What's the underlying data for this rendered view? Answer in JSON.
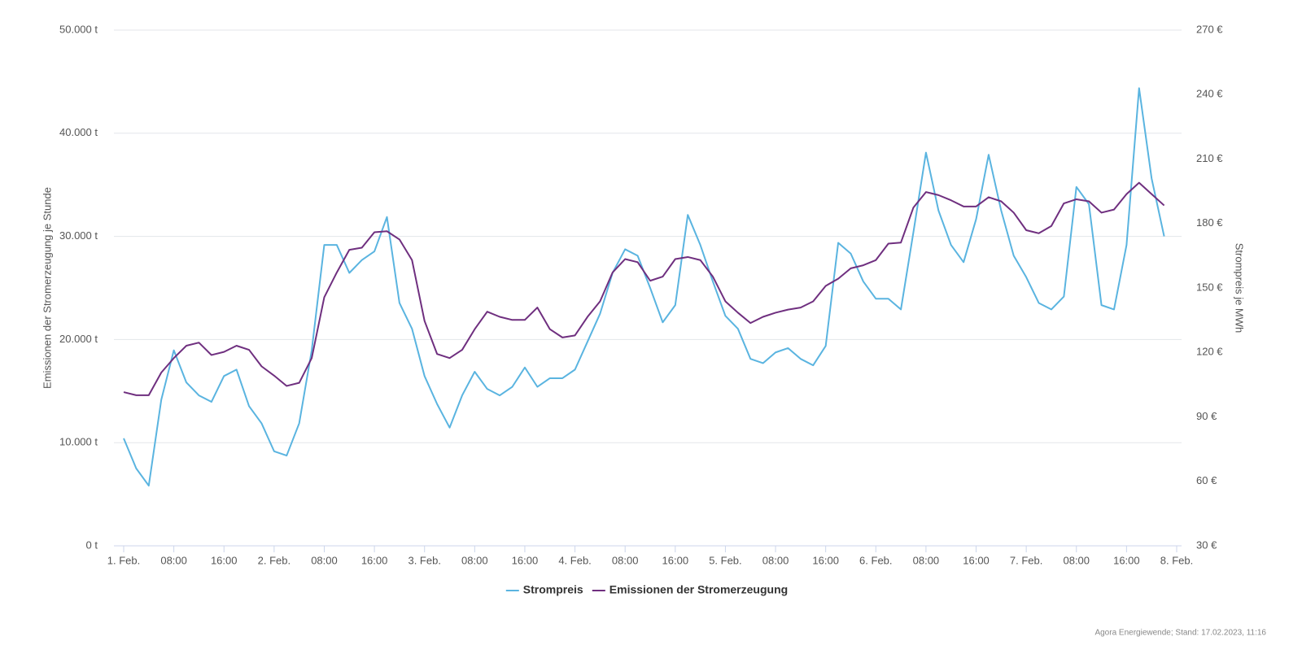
{
  "chart_data": {
    "type": "line",
    "y_label": "Emissionen der Stromerzeugung je Stunde",
    "y2_label": "Strompreis je MWh",
    "source": "Agora Energiewende; Stand: 17.02.2023, 11:16",
    "legend": "bottom",
    "grid": true,
    "xlim": [
      0,
      168
    ],
    "xticks": [
      {
        "value": 0,
        "label": "1. Feb."
      },
      {
        "value": 8,
        "label": "08:00"
      },
      {
        "value": 16,
        "label": "16:00"
      },
      {
        "value": 24,
        "label": "2. Feb."
      },
      {
        "value": 32,
        "label": "08:00"
      },
      {
        "value": 40,
        "label": "16:00"
      },
      {
        "value": 48,
        "label": "3. Feb."
      },
      {
        "value": 56,
        "label": "08:00"
      },
      {
        "value": 64,
        "label": "16:00"
      },
      {
        "value": 72,
        "label": "4. Feb."
      },
      {
        "value": 80,
        "label": "08:00"
      },
      {
        "value": 88,
        "label": "16:00"
      },
      {
        "value": 96,
        "label": "5. Feb."
      },
      {
        "value": 104,
        "label": "08:00"
      },
      {
        "value": 112,
        "label": "16:00"
      },
      {
        "value": 120,
        "label": "6. Feb."
      },
      {
        "value": 128,
        "label": "08:00"
      },
      {
        "value": 136,
        "label": "16:00"
      },
      {
        "value": 144,
        "label": "7. Feb."
      },
      {
        "value": 152,
        "label": "08:00"
      },
      {
        "value": 160,
        "label": "16:00"
      },
      {
        "value": 168,
        "label": "8. Feb."
      }
    ],
    "ylim": [
      0,
      50000
    ],
    "yticks": [
      {
        "value": 0,
        "label": "0 t"
      },
      {
        "value": 10000,
        "label": "10.000 t"
      },
      {
        "value": 20000,
        "label": "20.000 t"
      },
      {
        "value": 30000,
        "label": "30.000 t"
      },
      {
        "value": 40000,
        "label": "40.000 t"
      },
      {
        "value": 50000,
        "label": "50.000 t"
      }
    ],
    "y2lim": [
      30,
      270
    ],
    "y2ticks": [
      {
        "value": 30,
        "label": "30 €"
      },
      {
        "value": 60,
        "label": "60 €"
      },
      {
        "value": 90,
        "label": "90 €"
      },
      {
        "value": 120,
        "label": "120 €"
      },
      {
        "value": 150,
        "label": "150 €"
      },
      {
        "value": 180,
        "label": "180 €"
      },
      {
        "value": 210,
        "label": "210 €"
      },
      {
        "value": 240,
        "label": "240 €"
      },
      {
        "value": 270,
        "label": "270 €"
      }
    ],
    "x": [
      0,
      2,
      4,
      6,
      8,
      10,
      12,
      14,
      16,
      18,
      20,
      22,
      24,
      26,
      28,
      30,
      32,
      34,
      36,
      38,
      40,
      42,
      44,
      46,
      48,
      50,
      52,
      54,
      56,
      58,
      60,
      62,
      64,
      66,
      68,
      70,
      72,
      74,
      76,
      78,
      80,
      82,
      84,
      86,
      88,
      90,
      92,
      94,
      96,
      98,
      100,
      102,
      104,
      106,
      108,
      110,
      112,
      114,
      116,
      118,
      120,
      122,
      124,
      126,
      128,
      130,
      132,
      134,
      136,
      138,
      140,
      142,
      144,
      146,
      148,
      150,
      152,
      154,
      156,
      158,
      160,
      162,
      164,
      166
    ],
    "series": [
      {
        "name": "Strompreis",
        "color": "#5ab4e0",
        "axis": "y2",
        "values": [
          80,
          66,
          58,
          98,
          121,
          106,
          100,
          97,
          109,
          112,
          95,
          87,
          74,
          72,
          87,
          121,
          170,
          170,
          157,
          163,
          167,
          183,
          143,
          131,
          109,
          96,
          85,
          100,
          111,
          103,
          100,
          104,
          113,
          104,
          108,
          108,
          112,
          125,
          138,
          157,
          168,
          165,
          150,
          134,
          142,
          184,
          170,
          153,
          137,
          131,
          117,
          115,
          120,
          122,
          117,
          114,
          123,
          171,
          166,
          153,
          145,
          145,
          140,
          176,
          213,
          186,
          170,
          162,
          182,
          212,
          186,
          165,
          155,
          143,
          140,
          146,
          197,
          189,
          142,
          140,
          170,
          243,
          201,
          174
        ]
      },
      {
        "name": "Emissionen der Stromerzeugung",
        "color": "#6f2f7f",
        "values": [
          14900,
          14600,
          14600,
          16800,
          18200,
          19400,
          19700,
          18500,
          18800,
          19400,
          19000,
          17400,
          16500,
          15500,
          15800,
          18200,
          24100,
          26500,
          28700,
          28900,
          30400,
          30500,
          29700,
          27700,
          21800,
          18600,
          18200,
          19000,
          21000,
          22700,
          22200,
          21900,
          21900,
          23100,
          21000,
          20200,
          20400,
          22200,
          23700,
          26500,
          27800,
          27500,
          25700,
          26100,
          27800,
          28000,
          27700,
          26100,
          23700,
          22600,
          21600,
          22200,
          22600,
          22900,
          23100,
          23700,
          25200,
          25900,
          26900,
          27200,
          27700,
          29300,
          29400,
          32800,
          34300,
          34000,
          33500,
          32900,
          32900,
          33800,
          33400,
          32300,
          30600,
          30300,
          31000,
          33200,
          33600,
          33400,
          32300,
          32600,
          34100,
          35200,
          34100,
          33000
        ]
      }
    ]
  }
}
